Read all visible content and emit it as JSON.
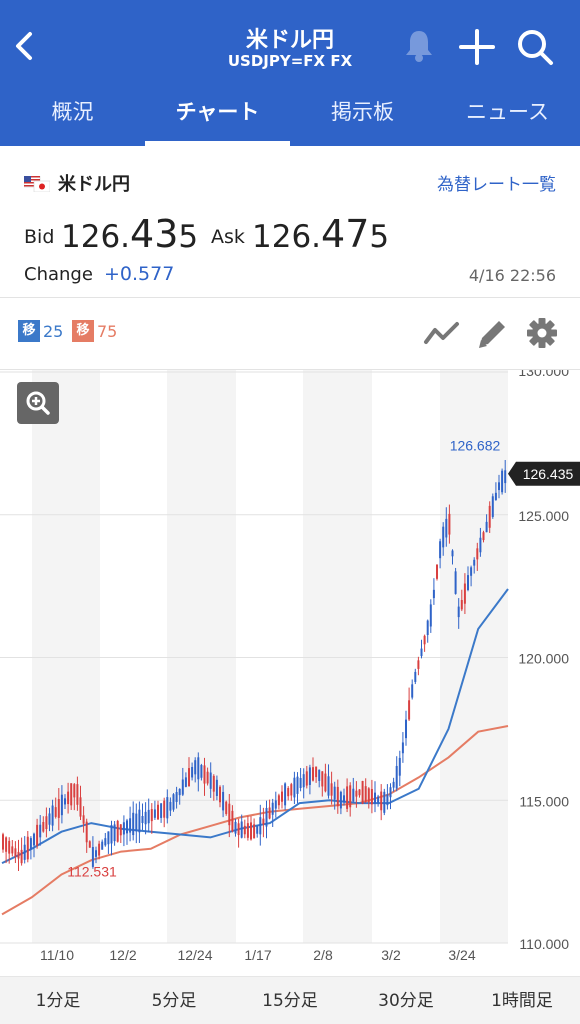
{
  "header": {
    "title": "米ドル円",
    "subtitle": "USDJPY=FX FX",
    "tabs": [
      {
        "label": "概況",
        "active": false
      },
      {
        "label": "チャート",
        "active": true
      },
      {
        "label": "掲示板",
        "active": false
      },
      {
        "label": "ニュース",
        "active": false
      }
    ],
    "icons": [
      "back-icon",
      "bell-icon",
      "plus-icon",
      "search-icon"
    ]
  },
  "quote": {
    "pair_name": "米ドル円",
    "rates_link": "為替レート一覧",
    "bid_label": "Bid",
    "bid_main": "126.",
    "bid_big": "43",
    "bid_tail": "5",
    "ask_label": "Ask",
    "ask_main": "126.",
    "ask_big": "47",
    "ask_tail": "5",
    "change_label": "Change",
    "change_value": "+0.577",
    "timestamp": "4/16 22:56"
  },
  "toolbar": {
    "ma_short": {
      "tag": "移",
      "period": "25",
      "color": "#3b79c9"
    },
    "ma_long": {
      "tag": "移",
      "period": "75",
      "color": "#e57c64"
    },
    "icons": [
      "line-chart-icon",
      "pencil-icon",
      "gear-icon"
    ]
  },
  "chart_data": {
    "type": "candlestick",
    "ylim": [
      110.0,
      130.0
    ],
    "y_ticks": [
      "130.000",
      "125.000",
      "120.000",
      "115.000",
      "110.000"
    ],
    "x_ticks": [
      "11/10",
      "12/2",
      "12/24",
      "1/17",
      "2/8",
      "3/2",
      "3/24"
    ],
    "current_price": "126.435",
    "high_label": "126.682",
    "low_label": "112.531",
    "colors": {
      "up": "#2f63c8",
      "down": "#d94040",
      "ma25": "#3b79c9",
      "ma75": "#e57c64",
      "band": "#f4f4f4"
    },
    "series": [
      {
        "name": "移25",
        "values": [
          112.8,
          113.3,
          113.9,
          114.2,
          114.0,
          113.9,
          113.8,
          113.7,
          114.0,
          114.2,
          114.9,
          115.0,
          114.9,
          114.9,
          115.4,
          117.5,
          121.0,
          122.4
        ]
      },
      {
        "name": "移75",
        "values": [
          111.0,
          111.6,
          112.4,
          112.9,
          113.2,
          113.3,
          113.8,
          114.1,
          114.4,
          114.6,
          114.7,
          114.8,
          114.9,
          115.2,
          115.8,
          116.5,
          117.4,
          117.6
        ]
      }
    ]
  },
  "timeframes": [
    "1分足",
    "5分足",
    "15分足",
    "30分足",
    "1時間足"
  ]
}
